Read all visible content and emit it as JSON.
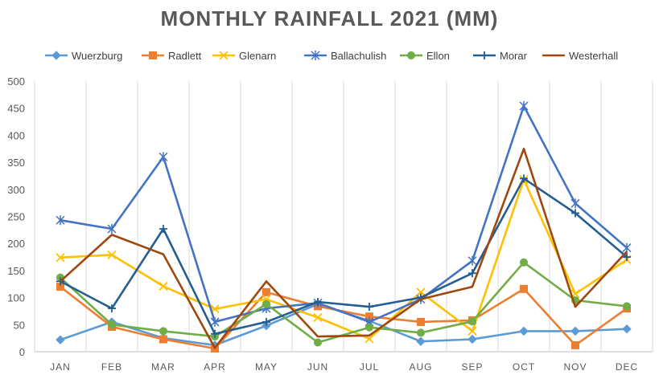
{
  "chart_data": {
    "type": "line",
    "title": "MONTHLY RAINFALL 2021 (MM)",
    "xlabel": "",
    "ylabel": "",
    "ylim": [
      0,
      500
    ],
    "yticks": [
      0,
      50,
      100,
      150,
      200,
      250,
      300,
      350,
      400,
      450,
      500
    ],
    "grid": "vertical",
    "legend": "top",
    "categories": [
      "JAN",
      "FEB",
      "MAR",
      "APR",
      "MAY",
      "JUN",
      "JUL",
      "AUG",
      "SEP",
      "OCT",
      "NOV",
      "DEC"
    ],
    "series": [
      {
        "name": "Wuerzburg",
        "color": "#5B9BD5",
        "marker": "diamond",
        "values": [
          22,
          55,
          25,
          12,
          48,
          88,
          57,
          19,
          23,
          38,
          38,
          42
        ]
      },
      {
        "name": "Radlett",
        "color": "#ED7D31",
        "marker": "square",
        "values": [
          120,
          46,
          23,
          6,
          110,
          84,
          65,
          55,
          58,
          116,
          12,
          80
        ]
      },
      {
        "name": "Glenarn",
        "color": "#FFC000",
        "marker": "x",
        "values": [
          174,
          179,
          121,
          79,
          97,
          63,
          24,
          110,
          38,
          318,
          107,
          170
        ]
      },
      {
        "name": "Ballachulish",
        "color": "#4472C4",
        "marker": "star",
        "values": [
          243,
          227,
          360,
          55,
          80,
          90,
          55,
          97,
          168,
          454,
          274,
          192
        ]
      },
      {
        "name": "Ellon",
        "color": "#70AD47",
        "marker": "circle",
        "values": [
          137,
          50,
          38,
          28,
          88,
          17,
          45,
          35,
          56,
          165,
          95,
          84
        ]
      },
      {
        "name": "Morar",
        "color": "#255E91",
        "marker": "plus",
        "values": [
          130,
          80,
          227,
          33,
          55,
          92,
          83,
          100,
          145,
          320,
          256,
          175
        ]
      },
      {
        "name": "Westerhall",
        "color": "#9E480E",
        "marker": "none",
        "values": [
          130,
          216,
          180,
          7,
          130,
          28,
          30,
          97,
          120,
          375,
          83,
          185
        ]
      }
    ]
  }
}
